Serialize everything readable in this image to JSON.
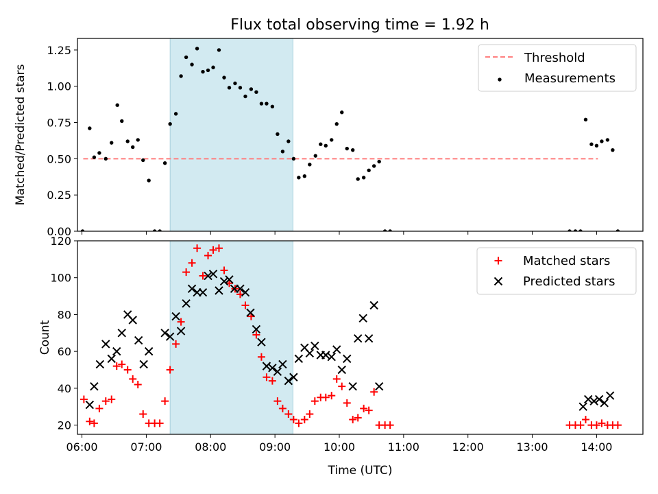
{
  "title": "Flux total observing time = 1.92 h",
  "colors": {
    "band": "#add8e6",
    "threshold": "#ff7f7f",
    "matched": "#ff0000",
    "predicted": "#000000",
    "measure": "#000000"
  },
  "chart_data": [
    {
      "type": "scatter",
      "ylabel": "Matched/Predicted stars",
      "xlim": [
        5.93,
        14.72
      ],
      "ylim": [
        0,
        1.33
      ],
      "yticks": [
        "0.00",
        "0.25",
        "0.50",
        "0.75",
        "1.00",
        "1.25"
      ],
      "shaded_region": [
        7.37,
        9.28
      ],
      "legend": {
        "placement": "upper right",
        "entries": [
          "Threshold",
          "Measurements"
        ]
      },
      "threshold": {
        "name": "Threshold",
        "x": [
          6.02,
          14.02
        ],
        "y": 0.5
      },
      "series": [
        {
          "name": "Measurements",
          "points": [
            [
              6.01,
              0.0
            ],
            [
              6.12,
              0.71
            ],
            [
              6.19,
              0.51
            ],
            [
              6.27,
              0.54
            ],
            [
              6.37,
              0.5
            ],
            [
              6.46,
              0.61
            ],
            [
              6.55,
              0.87
            ],
            [
              6.62,
              0.76
            ],
            [
              6.71,
              0.62
            ],
            [
              6.79,
              0.58
            ],
            [
              6.87,
              0.63
            ],
            [
              6.95,
              0.49
            ],
            [
              7.04,
              0.35
            ],
            [
              7.13,
              0.0
            ],
            [
              7.21,
              0.0
            ],
            [
              7.29,
              0.47
            ],
            [
              7.37,
              0.74
            ],
            [
              7.46,
              0.81
            ],
            [
              7.54,
              1.07
            ],
            [
              7.62,
              1.2
            ],
            [
              7.71,
              1.15
            ],
            [
              7.79,
              1.26
            ],
            [
              7.88,
              1.1
            ],
            [
              7.96,
              1.11
            ],
            [
              8.04,
              1.13
            ],
            [
              8.13,
              1.25
            ],
            [
              8.21,
              1.06
            ],
            [
              8.29,
              0.99
            ],
            [
              8.38,
              1.02
            ],
            [
              8.46,
              0.99
            ],
            [
              8.54,
              0.93
            ],
            [
              8.63,
              0.98
            ],
            [
              8.71,
              0.96
            ],
            [
              8.79,
              0.88
            ],
            [
              8.87,
              0.88
            ],
            [
              8.96,
              0.86
            ],
            [
              9.04,
              0.67
            ],
            [
              9.12,
              0.55
            ],
            [
              9.21,
              0.62
            ],
            [
              9.29,
              0.5
            ],
            [
              9.37,
              0.37
            ],
            [
              9.46,
              0.38
            ],
            [
              9.54,
              0.46
            ],
            [
              9.63,
              0.52
            ],
            [
              9.71,
              0.6
            ],
            [
              9.79,
              0.59
            ],
            [
              9.88,
              0.63
            ],
            [
              9.96,
              0.74
            ],
            [
              10.04,
              0.82
            ],
            [
              10.12,
              0.57
            ],
            [
              10.21,
              0.56
            ],
            [
              10.29,
              0.36
            ],
            [
              10.38,
              0.37
            ],
            [
              10.46,
              0.42
            ],
            [
              10.54,
              0.45
            ],
            [
              10.62,
              0.48
            ],
            [
              10.71,
              0.0
            ],
            [
              10.79,
              0.0
            ],
            [
              13.58,
              0.0
            ],
            [
              13.67,
              0.0
            ],
            [
              13.75,
              0.0
            ],
            [
              13.83,
              0.77
            ],
            [
              13.92,
              0.6
            ],
            [
              14.0,
              0.59
            ],
            [
              14.08,
              0.62
            ],
            [
              14.17,
              0.63
            ],
            [
              14.25,
              0.56
            ],
            [
              14.33,
              0.0
            ]
          ]
        }
      ]
    },
    {
      "type": "scatter",
      "xlabel": "Time (UTC)",
      "ylabel": "Count",
      "xlim": [
        5.93,
        14.72
      ],
      "ylim": [
        15,
        120
      ],
      "yticks": [
        "20",
        "40",
        "60",
        "80",
        "100",
        "120"
      ],
      "xticks": [
        "06:00",
        "07:00",
        "08:00",
        "09:00",
        "10:00",
        "11:00",
        "12:00",
        "13:00",
        "14:00"
      ],
      "shaded_region": [
        7.37,
        9.28
      ],
      "legend": {
        "placement": "upper right",
        "entries": [
          "Matched stars",
          "Predicted stars"
        ]
      },
      "series": [
        {
          "name": "Matched stars",
          "marker": "+",
          "points": [
            [
              6.03,
              34
            ],
            [
              6.12,
              22
            ],
            [
              6.19,
              21
            ],
            [
              6.27,
              29
            ],
            [
              6.37,
              33
            ],
            [
              6.46,
              34
            ],
            [
              6.54,
              52
            ],
            [
              6.62,
              53
            ],
            [
              6.71,
              50
            ],
            [
              6.79,
              45
            ],
            [
              6.87,
              42
            ],
            [
              6.95,
              26
            ],
            [
              7.04,
              21
            ],
            [
              7.13,
              21
            ],
            [
              7.21,
              21
            ],
            [
              7.29,
              33
            ],
            [
              7.37,
              50
            ],
            [
              7.46,
              64
            ],
            [
              7.54,
              76
            ],
            [
              7.62,
              103
            ],
            [
              7.71,
              108
            ],
            [
              7.79,
              116
            ],
            [
              7.88,
              101
            ],
            [
              7.96,
              112
            ],
            [
              8.04,
              115
            ],
            [
              8.13,
              116
            ],
            [
              8.21,
              104
            ],
            [
              8.29,
              97
            ],
            [
              8.38,
              94
            ],
            [
              8.46,
              91
            ],
            [
              8.54,
              85
            ],
            [
              8.63,
              79
            ],
            [
              8.71,
              69
            ],
            [
              8.79,
              57
            ],
            [
              8.87,
              46
            ],
            [
              8.96,
              44
            ],
            [
              9.04,
              33
            ],
            [
              9.12,
              29
            ],
            [
              9.21,
              26
            ],
            [
              9.29,
              23
            ],
            [
              9.37,
              21
            ],
            [
              9.46,
              23
            ],
            [
              9.54,
              26
            ],
            [
              9.62,
              33
            ],
            [
              9.71,
              35
            ],
            [
              9.79,
              35
            ],
            [
              9.88,
              36
            ],
            [
              9.96,
              45
            ],
            [
              10.04,
              41
            ],
            [
              10.12,
              32
            ],
            [
              10.21,
              23
            ],
            [
              10.29,
              24
            ],
            [
              10.38,
              29
            ],
            [
              10.46,
              28
            ],
            [
              10.54,
              38
            ],
            [
              10.62,
              20
            ],
            [
              10.71,
              20
            ],
            [
              10.79,
              20
            ],
            [
              13.58,
              20
            ],
            [
              13.67,
              20
            ],
            [
              13.75,
              20
            ],
            [
              13.83,
              23
            ],
            [
              13.92,
              20
            ],
            [
              14.0,
              20
            ],
            [
              14.08,
              21
            ],
            [
              14.17,
              20
            ],
            [
              14.25,
              20
            ],
            [
              14.33,
              20
            ]
          ]
        },
        {
          "name": "Predicted stars",
          "marker": "x",
          "points": [
            [
              6.12,
              31
            ],
            [
              6.19,
              41
            ],
            [
              6.28,
              53
            ],
            [
              6.37,
              64
            ],
            [
              6.46,
              56
            ],
            [
              6.54,
              60
            ],
            [
              6.62,
              70
            ],
            [
              6.71,
              80
            ],
            [
              6.79,
              77
            ],
            [
              6.88,
              66
            ],
            [
              6.96,
              53
            ],
            [
              7.04,
              60
            ],
            [
              7.29,
              70
            ],
            [
              7.37,
              68
            ],
            [
              7.46,
              79
            ],
            [
              7.54,
              71
            ],
            [
              7.62,
              86
            ],
            [
              7.71,
              94
            ],
            [
              7.79,
              92
            ],
            [
              7.88,
              92
            ],
            [
              7.96,
              101
            ],
            [
              8.04,
              102
            ],
            [
              8.13,
              93
            ],
            [
              8.21,
              98
            ],
            [
              8.29,
              99
            ],
            [
              8.37,
              94
            ],
            [
              8.46,
              94
            ],
            [
              8.54,
              92
            ],
            [
              8.62,
              81
            ],
            [
              8.71,
              72
            ],
            [
              8.79,
              65
            ],
            [
              8.87,
              52
            ],
            [
              8.96,
              51
            ],
            [
              9.04,
              49
            ],
            [
              9.12,
              53
            ],
            [
              9.21,
              44
            ],
            [
              9.29,
              46
            ],
            [
              9.37,
              56
            ],
            [
              9.46,
              62
            ],
            [
              9.54,
              59
            ],
            [
              9.62,
              63
            ],
            [
              9.71,
              58
            ],
            [
              9.79,
              58
            ],
            [
              9.88,
              57
            ],
            [
              9.96,
              61
            ],
            [
              10.04,
              50
            ],
            [
              10.12,
              56
            ],
            [
              10.21,
              41
            ],
            [
              10.29,
              67
            ],
            [
              10.37,
              78
            ],
            [
              10.46,
              67
            ],
            [
              10.54,
              85
            ],
            [
              10.62,
              41
            ],
            [
              13.79,
              30
            ],
            [
              13.87,
              34
            ],
            [
              13.96,
              33
            ],
            [
              14.04,
              34
            ],
            [
              14.12,
              32
            ],
            [
              14.21,
              36
            ]
          ]
        }
      ]
    }
  ]
}
